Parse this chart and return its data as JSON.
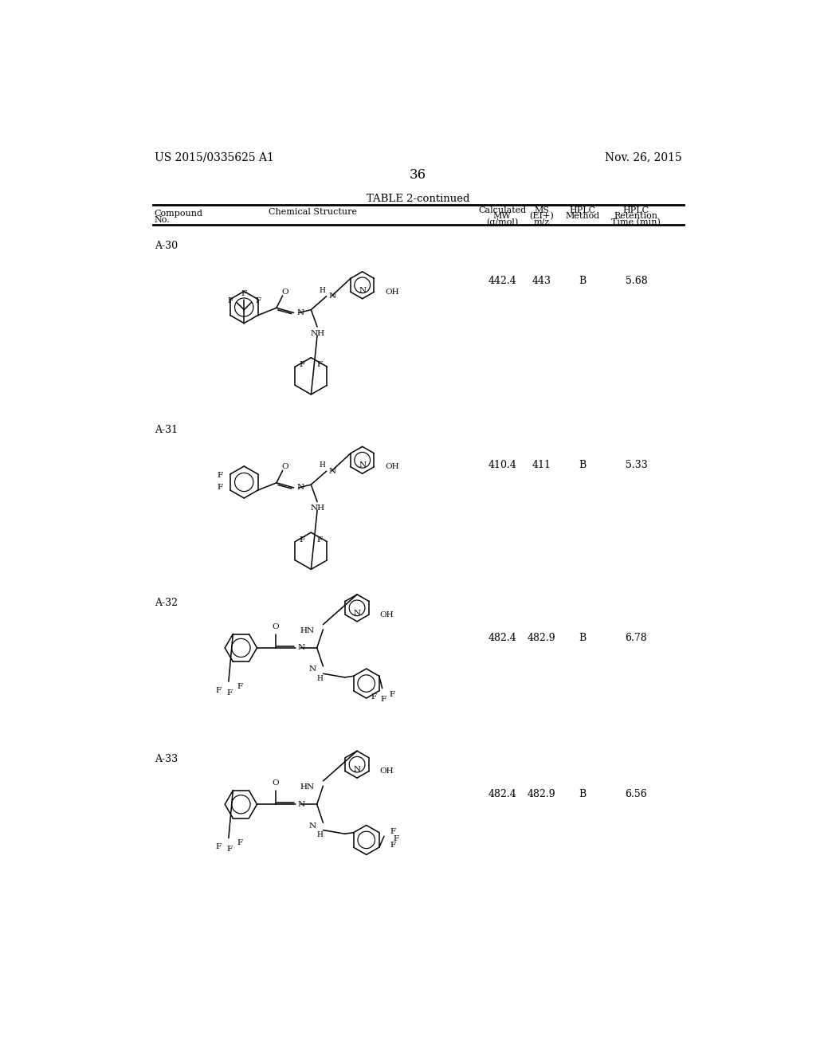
{
  "page_number": "36",
  "patent_left": "US 2015/0335625 A1",
  "patent_right": "Nov. 26, 2015",
  "table_title": "TABLE 2-continued",
  "rows": [
    {
      "compound": "A-30",
      "calc_mw": "442.4",
      "ms": "443",
      "hplc_method": "B",
      "hplc_retention": "5.68"
    },
    {
      "compound": "A-31",
      "calc_mw": "410.4",
      "ms": "411",
      "hplc_method": "B",
      "hplc_retention": "5.33"
    },
    {
      "compound": "A-32",
      "calc_mw": "482.4",
      "ms": "482.9",
      "hplc_method": "B",
      "hplc_retention": "6.78"
    },
    {
      "compound": "A-33",
      "calc_mw": "482.4",
      "ms": "482.9",
      "hplc_method": "B",
      "hplc_retention": "6.56"
    }
  ],
  "background_color": "#ffffff",
  "text_color": "#000000"
}
